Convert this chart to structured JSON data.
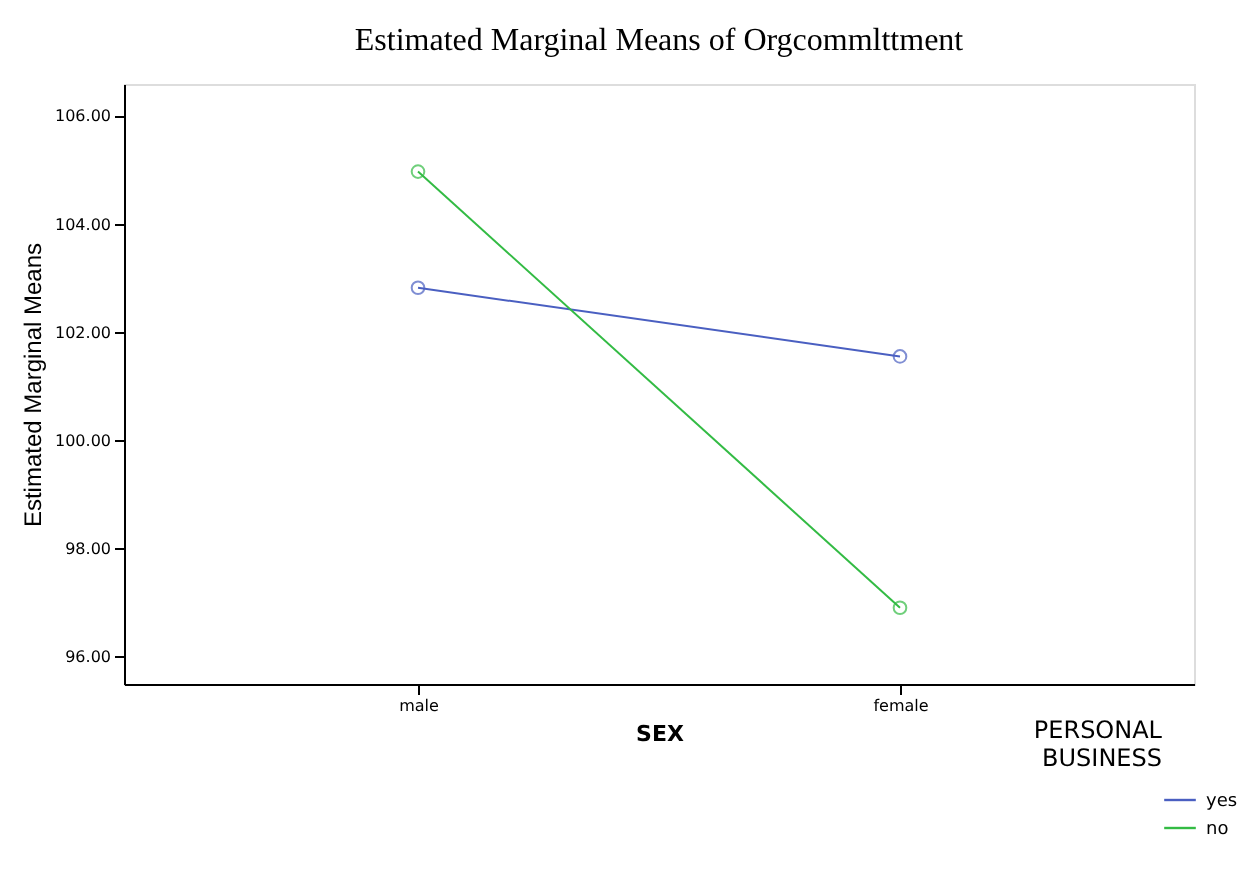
{
  "chart_data": {
    "type": "line",
    "title": "Estimated Marginal Means of Orgcommlttment",
    "xlabel": "SEX",
    "ylabel": "Estimated Marginal Means",
    "legend_title": "PERSONAL BUSINESS",
    "categories": [
      "male",
      "female"
    ],
    "series": [
      {
        "name": "yes",
        "color": "#4a5fc1",
        "values": [
          102.83,
          101.56
        ]
      },
      {
        "name": "no",
        "color": "#33bb44",
        "values": [
          104.98,
          96.91
        ]
      }
    ],
    "ylim": [
      95.5,
      106.6
    ],
    "yticks": [
      {
        "value": 96,
        "label": "96.00"
      },
      {
        "value": 98,
        "label": "98.00"
      },
      {
        "value": 100,
        "label": "100.00"
      },
      {
        "value": 102,
        "label": "102.00"
      },
      {
        "value": 104,
        "label": "104.00"
      },
      {
        "value": 106,
        "label": "106.00"
      }
    ],
    "marker": "circle",
    "line_style": "solid",
    "grid": false,
    "legend": "bottom right"
  }
}
